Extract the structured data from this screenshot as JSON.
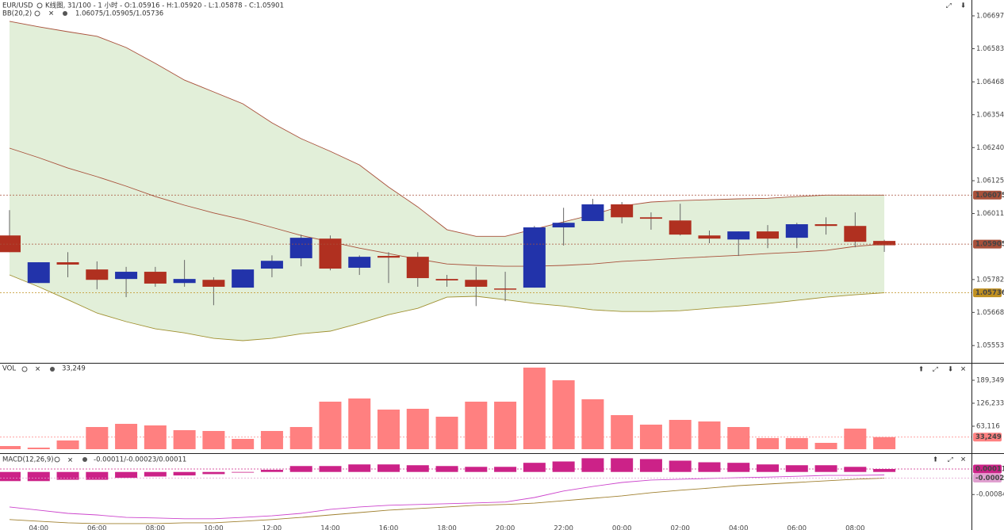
{
  "header": {
    "symbol": "EUR/USD",
    "info": "K线图, 31/100 - 1 小时 - O:1.05916 - H:1.05920 - L:1.05878 - C:1.05901"
  },
  "chart_data": [
    {
      "type": "candlestick",
      "up_color": "#2233aa",
      "down_color": "#b03020",
      "categories": [
        null,
        "04:00",
        null,
        "06:00",
        null,
        "08:00",
        null,
        "10:00",
        null,
        "12:00",
        null,
        "14:00",
        null,
        "16:00",
        null,
        "18:00",
        null,
        "20:00",
        null,
        "22:00",
        null,
        "00:00",
        null,
        "02:00",
        null,
        "04:00",
        null,
        "06:00",
        null,
        "08:00",
        null
      ],
      "open": [
        1.05935,
        1.0577,
        1.05842,
        1.05817,
        1.05784,
        1.05809,
        1.0577,
        1.05781,
        1.05754,
        1.0582,
        1.05856,
        1.05924,
        1.05823,
        1.05864,
        1.05861,
        1.05784,
        1.05781,
        1.05751,
        1.05754,
        1.05963,
        1.05985,
        1.06043,
        1.05998,
        1.05987,
        1.05935,
        1.05921,
        1.05949,
        1.05927,
        1.05974,
        1.05968,
        1.05916
      ],
      "high": [
        1.06023,
        1.05842,
        1.05877,
        1.05845,
        1.05826,
        1.05826,
        1.0585,
        1.0579,
        1.05817,
        1.05866,
        1.05938,
        1.05935,
        1.05866,
        1.05877,
        1.05877,
        1.05798,
        1.05826,
        1.05809,
        1.05968,
        1.06031,
        1.06062,
        1.06051,
        1.06015,
        1.06045,
        1.05952,
        1.05949,
        1.05971,
        1.05979,
        1.05998,
        1.06015,
        1.0592
      ],
      "low": [
        1.05877,
        1.0577,
        1.0579,
        1.05748,
        1.05721,
        1.05757,
        1.05757,
        1.05693,
        1.05754,
        1.0579,
        1.05828,
        1.05814,
        1.05798,
        1.0577,
        1.05757,
        1.05757,
        1.0569,
        1.05707,
        1.05754,
        1.059,
        1.05985,
        1.05977,
        1.05955,
        1.05935,
        1.05908,
        1.05864,
        1.05891,
        1.05891,
        1.05938,
        1.05894,
        1.05878
      ],
      "close": [
        1.05877,
        1.05842,
        1.05834,
        1.05781,
        1.05809,
        1.05768,
        1.05784,
        1.05757,
        1.05817,
        1.05847,
        1.05927,
        1.0582,
        1.05861,
        1.05858,
        1.05787,
        1.05779,
        1.05757,
        1.05748,
        1.05963,
        1.05979,
        1.06043,
        1.05998,
        1.05993,
        1.05938,
        1.05924,
        1.05949,
        1.05924,
        1.05974,
        1.05968,
        1.05913,
        1.05901
      ],
      "bb": {
        "label": "BB(20,2)",
        "values_label": "1.06075/1.05905/1.05736",
        "fill": "#e2efd9",
        "upper_color": "#a8503a",
        "middle_color": "#a8503a",
        "lower_color": "#a09030",
        "upper": [
          1.06678,
          1.06659,
          1.06642,
          1.06626,
          1.06587,
          1.06532,
          1.06474,
          1.06433,
          1.06392,
          1.06326,
          1.06271,
          1.06227,
          1.0618,
          1.06103,
          1.06034,
          1.05955,
          1.05932,
          1.05932,
          1.05957,
          1.05982,
          1.06007,
          1.06037,
          1.06051,
          1.06056,
          1.06059,
          1.06062,
          1.06064,
          1.0607,
          1.06075,
          1.06075,
          1.06075
        ],
        "middle": [
          1.06238,
          1.06205,
          1.06169,
          1.06139,
          1.06106,
          1.0607,
          1.0604,
          1.06013,
          1.0599,
          1.05963,
          1.05935,
          1.05913,
          1.05891,
          1.05872,
          1.05853,
          1.05836,
          1.05831,
          1.05828,
          1.05828,
          1.05831,
          1.05836,
          1.05845,
          1.0585,
          1.05856,
          1.05861,
          1.05866,
          1.05872,
          1.05877,
          1.05883,
          1.05897,
          1.05905
        ],
        "lower": [
          1.05798,
          1.05757,
          1.05712,
          1.05666,
          1.05636,
          1.05611,
          1.05597,
          1.05578,
          1.0557,
          1.05578,
          1.05594,
          1.05603,
          1.0563,
          1.0566,
          1.05682,
          1.05721,
          1.05724,
          1.05712,
          1.05699,
          1.0569,
          1.05677,
          1.05671,
          1.05671,
          1.05674,
          1.05682,
          1.0569,
          1.05699,
          1.0571,
          1.05721,
          1.05729,
          1.05736
        ]
      },
      "ylim": [
        1.05493,
        1.06752
      ],
      "yticks": [
        1.06697,
        1.06583,
        1.06468,
        1.06354,
        {
          "value": 1.0624,
          "label": "1.06240"
        },
        1.06125,
        1.06011,
        1.05782,
        1.05668,
        1.05553
      ]
    },
    {
      "type": "bar",
      "label": "VOL",
      "current_label": "33,249",
      "color": "#ff8080",
      "values": [
        8706,
        4353,
        23940,
        60939,
        69645,
        65292,
        52234,
        50057,
        28293,
        50057,
        60939,
        130584,
        139290,
        108820,
        110996,
        89232,
        130584,
        130584,
        224169,
        189349,
        137113,
        93585,
        67468,
        80527,
        76174,
        60939,
        30470,
        30470,
        17411,
        56586,
        33249
      ],
      "ylim": [
        0,
        232875
      ],
      "yticks": [
        {
          "value": 189349,
          "label": "189,349"
        },
        {
          "value": 126233,
          "label": "126,233"
        },
        {
          "value": 63116,
          "label": "63,116"
        }
      ]
    },
    {
      "type": "macd",
      "label": "MACD(12,26,9)",
      "values_label": "-0.00011/-0.00023/0.00011",
      "hist_color": "#cc2288",
      "macd_color": "#cc44cc",
      "signal_color": "#a08030",
      "histogram": [
        -0.00034,
        -0.00034,
        -0.00029,
        -0.00029,
        -0.00022,
        -0.00017,
        -0.00013,
        -8e-05,
        -1e-05,
        8e-05,
        0.00022,
        0.00022,
        0.00028,
        0.00028,
        0.00025,
        0.00022,
        0.00019,
        0.00019,
        0.00034,
        0.00039,
        0.00051,
        0.00051,
        0.00048,
        0.00042,
        0.00036,
        0.00034,
        0.00028,
        0.00025,
        0.00025,
        0.00019,
        0.00011
      ],
      "macd": [
        -0.0013,
        -0.00142,
        -0.00154,
        -0.0016,
        -0.00169,
        -0.00171,
        -0.00174,
        -0.00174,
        -0.00169,
        -0.00163,
        -0.00154,
        -0.00139,
        -0.0013,
        -0.00124,
        -0.00121,
        -0.00118,
        -0.00115,
        -0.00112,
        -0.00095,
        -0.00071,
        -0.00054,
        -0.00039,
        -0.0003,
        -0.00027,
        -0.00024,
        -0.00021,
        -0.00019,
        -0.00016,
        -0.00013,
        -0.00013,
        -0.00011
      ],
      "signal": [
        -0.00177,
        -0.00183,
        -0.00189,
        -0.00192,
        -0.00192,
        -0.00192,
        -0.00189,
        -0.00189,
        -0.00183,
        -0.00177,
        -0.00169,
        -0.0016,
        -0.00151,
        -0.00142,
        -0.00136,
        -0.0013,
        -0.00124,
        -0.00121,
        -0.00116,
        -0.00107,
        -0.00098,
        -0.00089,
        -0.00077,
        -0.00068,
        -0.0006,
        -0.00051,
        -0.00045,
        -0.00039,
        -0.00033,
        -0.00027,
        -0.00023
      ],
      "ylim": [
        -0.00207,
        0.00064
      ],
      "yticks": [
        -0.00084
      ]
    }
  ]
}
